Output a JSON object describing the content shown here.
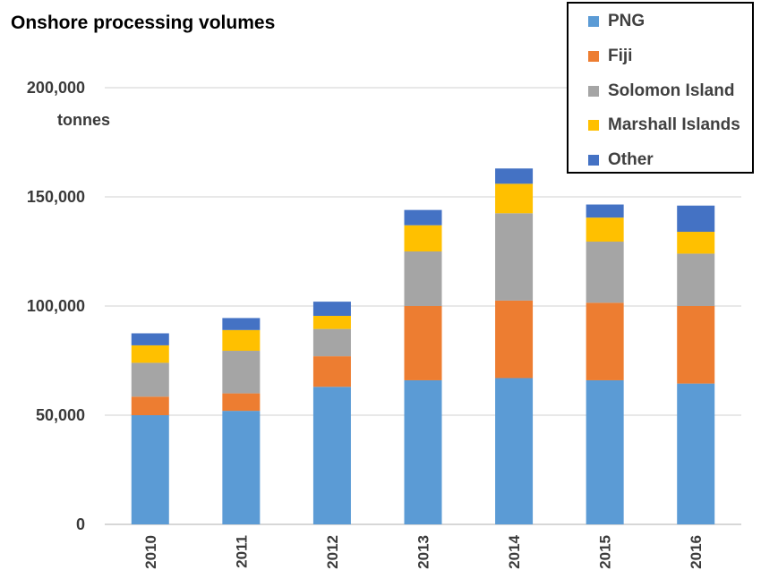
{
  "chart_data": {
    "type": "bar",
    "stacked": true,
    "title": "Onshore processing volumes",
    "ylabel": "tonnes",
    "xlabel": "",
    "categories": [
      "2010",
      "2011",
      "2012",
      "2013",
      "2014",
      "2015",
      "2016"
    ],
    "ylim": [
      0,
      200000
    ],
    "yticks": [
      "0",
      "50,000",
      "100,000",
      "150,000",
      "200,000"
    ],
    "ytick_values": [
      0,
      50000,
      100000,
      150000,
      200000
    ],
    "grid": true,
    "legend_position": "top-right",
    "series": [
      {
        "name": "PNG",
        "color": "#5b9bd5",
        "values": [
          50000,
          52000,
          63000,
          66000,
          67000,
          66000,
          64500
        ]
      },
      {
        "name": "Fiji",
        "color": "#ed7d31",
        "values": [
          8500,
          8000,
          14000,
          34000,
          35500,
          35500,
          35500
        ]
      },
      {
        "name": "Solomon Island",
        "color": "#a5a5a5",
        "values": [
          15500,
          19500,
          12500,
          25000,
          40000,
          28000,
          24000
        ]
      },
      {
        "name": "Marshall Islands",
        "color": "#ffc000",
        "values": [
          8000,
          9500,
          6000,
          12000,
          13500,
          11000,
          10000
        ]
      },
      {
        "name": "Other",
        "color": "#4472c4",
        "values": [
          5500,
          5500,
          6500,
          7000,
          7000,
          6000,
          12000
        ]
      }
    ]
  }
}
